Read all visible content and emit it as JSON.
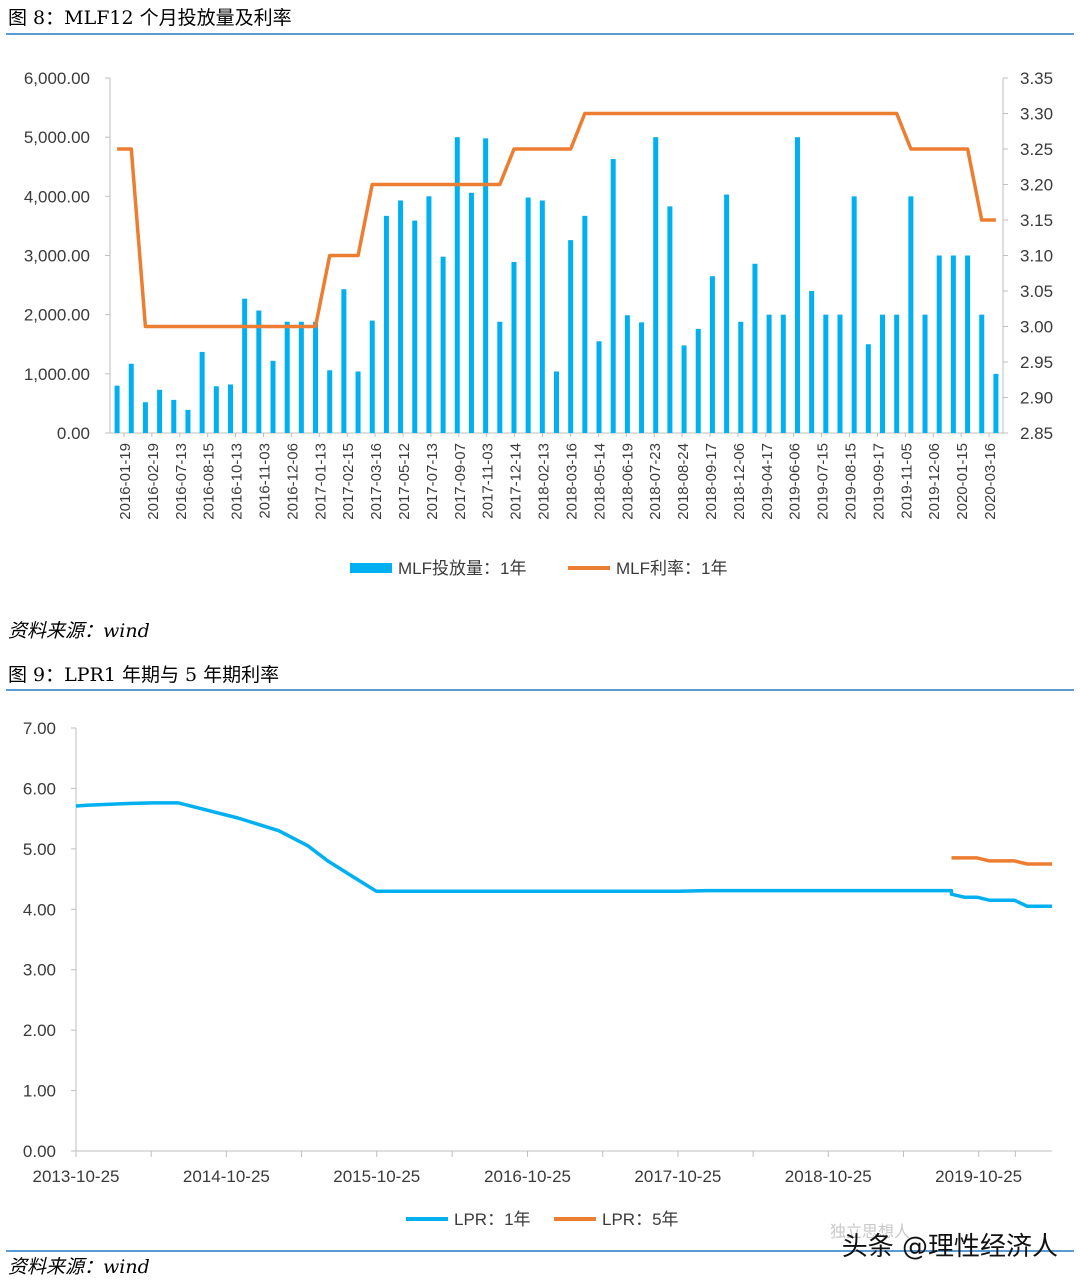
{
  "figures": [
    {
      "title": "图 8：MLF12 个月投放量及利率",
      "source": "资料来源：wind"
    },
    {
      "title": "图 9：LPR1 年期与 5 年期利率",
      "source": "资料来源：wind"
    }
  ],
  "watermark": {
    "text": "头条 @理性经济人",
    "logo_text": "独立思想人"
  },
  "colors": {
    "blue": "#00B0F0",
    "orange": "#ED7D31",
    "rule": "#5b9bd5",
    "axis": "#bfbfbf"
  },
  "chart_data": [
    {
      "type": "bar+line",
      "title": "",
      "y_left": {
        "ticks": [
          "0.00",
          "1,000.00",
          "2,000.00",
          "3,000.00",
          "4,000.00",
          "5,000.00",
          "6,000.00"
        ],
        "range": [
          0,
          6000
        ]
      },
      "y_right": {
        "ticks": [
          "2.85",
          "2.90",
          "2.95",
          "3.00",
          "3.05",
          "3.10",
          "3.15",
          "3.20",
          "3.25",
          "3.30",
          "3.35"
        ],
        "range": [
          2.85,
          3.35
        ]
      },
      "x_tick_labels": [
        "2016-01-19",
        "2016-02-19",
        "2016-07-13",
        "2016-08-15",
        "2016-10-13",
        "2016-11-03",
        "2016-12-06",
        "2017-01-13",
        "2017-02-15",
        "2017-03-16",
        "2017-05-12",
        "2017-07-13",
        "2017-09-07",
        "2017-11-03",
        "2017-12-14",
        "2018-02-13",
        "2018-03-16",
        "2018-05-14",
        "2018-06-19",
        "2018-07-23",
        "2018-08-24",
        "2018-09-17",
        "2018-12-06",
        "2019-04-17",
        "2019-06-06",
        "2019-07-15",
        "2019-08-15",
        "2019-09-17",
        "2019-11-05",
        "2019-12-06",
        "2020-01-15",
        "2020-03-16"
      ],
      "legend": [
        "MLF投放量：1年",
        "MLF利率：1年"
      ],
      "bars": [
        800,
        1170,
        520,
        730,
        560,
        390,
        1370,
        790,
        820,
        2270,
        2070,
        1220,
        1880,
        1880,
        1880,
        1060,
        2430,
        1040,
        1900,
        3670,
        3930,
        3590,
        4000,
        2980,
        5000,
        4060,
        4980,
        1880,
        2890,
        3980,
        3930,
        1040,
        3260,
        3670,
        1550,
        4630,
        1990,
        1870,
        5000,
        3830,
        1480,
        1760,
        2650,
        4030,
        1880,
        2860,
        2000,
        2000,
        5000,
        2400,
        2000,
        2000,
        4000,
        1500,
        2000,
        2000,
        4000,
        2000,
        3000,
        3000,
        3000,
        2000,
        1000
      ],
      "rates": [
        3.25,
        3.25,
        3.0,
        3.0,
        3.0,
        3.0,
        3.0,
        3.0,
        3.0,
        3.0,
        3.0,
        3.0,
        3.0,
        3.0,
        3.0,
        3.1,
        3.1,
        3.1,
        3.2,
        3.2,
        3.2,
        3.2,
        3.2,
        3.2,
        3.2,
        3.2,
        3.2,
        3.2,
        3.25,
        3.25,
        3.25,
        3.25,
        3.25,
        3.3,
        3.3,
        3.3,
        3.3,
        3.3,
        3.3,
        3.3,
        3.3,
        3.3,
        3.3,
        3.3,
        3.3,
        3.3,
        3.3,
        3.3,
        3.3,
        3.3,
        3.3,
        3.3,
        3.3,
        3.3,
        3.3,
        3.3,
        3.25,
        3.25,
        3.25,
        3.25,
        3.25,
        3.15,
        3.15
      ]
    },
    {
      "type": "line",
      "title": "",
      "y_ticks": [
        "0.00",
        "1.00",
        "2.00",
        "3.00",
        "4.00",
        "5.00",
        "6.00",
        "7.00"
      ],
      "ylim": [
        0,
        7
      ],
      "x_tick_labels": [
        "2013-10-25",
        "2014-10-25",
        "2015-10-25",
        "2016-10-25",
        "2017-10-25",
        "2018-10-25",
        "2019-10-25"
      ],
      "xlim": [
        "2013-10-25",
        "2020-04-20"
      ],
      "legend": [
        "LPR：1年",
        "LPR：5年"
      ],
      "series": [
        {
          "name": "LPR：1年",
          "points": [
            [
              "2013-10-25",
              5.71
            ],
            [
              "2013-11-20",
              5.72
            ],
            [
              "2014-03-01",
              5.75
            ],
            [
              "2014-05-01",
              5.76
            ],
            [
              "2014-07-01",
              5.76
            ],
            [
              "2014-11-22",
              5.51
            ],
            [
              "2015-03-01",
              5.3
            ],
            [
              "2015-05-11",
              5.05
            ],
            [
              "2015-06-28",
              4.8
            ],
            [
              "2015-08-26",
              4.55
            ],
            [
              "2015-10-24",
              4.3
            ],
            [
              "2016-10-25",
              4.3
            ],
            [
              "2017-10-25",
              4.3
            ],
            [
              "2018-01-01",
              4.31
            ],
            [
              "2019-08-20",
              4.31
            ],
            [
              "2019-08-20",
              4.25
            ],
            [
              "2019-09-20",
              4.2
            ],
            [
              "2019-10-21",
              4.2
            ],
            [
              "2019-11-20",
              4.15
            ],
            [
              "2019-12-20",
              4.15
            ],
            [
              "2020-01-20",
              4.15
            ],
            [
              "2020-02-20",
              4.05
            ],
            [
              "2020-04-20",
              4.05
            ]
          ]
        },
        {
          "name": "LPR：5年",
          "points": [
            [
              "2019-08-20",
              4.85
            ],
            [
              "2019-09-20",
              4.85
            ],
            [
              "2019-10-21",
              4.85
            ],
            [
              "2019-11-20",
              4.8
            ],
            [
              "2019-12-20",
              4.8
            ],
            [
              "2020-01-20",
              4.8
            ],
            [
              "2020-02-20",
              4.75
            ],
            [
              "2020-04-20",
              4.75
            ]
          ]
        }
      ]
    }
  ]
}
